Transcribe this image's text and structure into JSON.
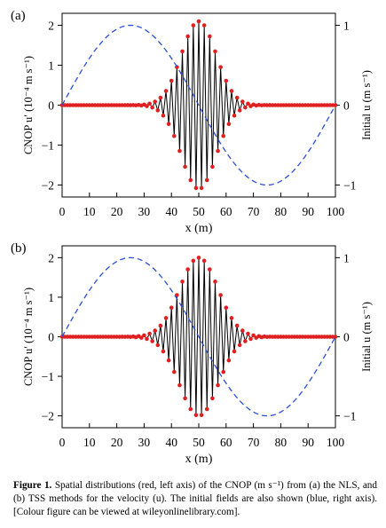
{
  "figure": {
    "caption_label": "Figure 1.",
    "caption_text": " Spatial distributions (red, left axis) of the CNOP (m s⁻¹) from (a) the NLS, and (b) TSS methods for the velocity (u). The initial fields are also shown (blue, right axis). [Colour figure can be viewed at wileyonlinelibrary.com]."
  },
  "chart_data": [
    {
      "type": "line",
      "panel_label": "(a)",
      "xlabel": "x (m)",
      "ylabel_left": "CNOP u′ (10⁻⁴ m s⁻¹)",
      "ylabel_right": "Initial u (m s⁻¹)",
      "xlim": [
        0,
        100
      ],
      "ylim_left": [
        -2.3,
        2.3
      ],
      "ylim_right": [
        -1.15,
        1.15
      ],
      "x_ticks": [
        0,
        10,
        20,
        30,
        40,
        50,
        60,
        70,
        80,
        90,
        100
      ],
      "y_ticks_left": [
        2,
        1,
        0,
        -1,
        -2
      ],
      "y_tick_labels_left": [
        "2",
        "1",
        "0",
        "−1",
        "−2"
      ],
      "y_ticks_right": [
        1,
        0,
        -1
      ],
      "y_tick_labels_right": [
        "1",
        "0",
        "−1"
      ],
      "colors": {
        "cnop_line": "#000000",
        "cnop_marker": "#e02020",
        "initial": "#2a4fd6"
      },
      "series": [
        {
          "axis": "left",
          "style": "line-with-markers",
          "envelope_center": 50,
          "envelope_width": 9.0,
          "envelope_amplitude": 2.1,
          "oscillation_half_period": 1.0,
          "x_range": [
            0,
            100
          ],
          "x_step": 1
        },
        {
          "axis": "right",
          "style": "dashed",
          "function": "sine",
          "amplitude": 1.0,
          "period": 100,
          "x_range": [
            0,
            100
          ]
        }
      ]
    },
    {
      "type": "line",
      "panel_label": "(b)",
      "xlabel": "x (m)",
      "ylabel_left": "CNOP u′ (10⁻⁴ m s⁻¹)",
      "ylabel_right": "Initial u (m s⁻¹)",
      "xlim": [
        0,
        100
      ],
      "ylim_left": [
        -2.3,
        2.3
      ],
      "ylim_right": [
        -1.15,
        1.15
      ],
      "x_ticks": [
        0,
        10,
        20,
        30,
        40,
        50,
        60,
        70,
        80,
        90,
        100
      ],
      "y_ticks_left": [
        2,
        1,
        0,
        -1,
        -2
      ],
      "y_tick_labels_left": [
        "2",
        "1",
        "0",
        "−1",
        "−2"
      ],
      "y_ticks_right": [
        1,
        0,
        -1
      ],
      "y_tick_labels_right": [
        "1",
        "0",
        "−1"
      ],
      "colors": {
        "cnop_line": "#000000",
        "cnop_marker": "#e02020",
        "initial": "#2a4fd6"
      },
      "series": [
        {
          "axis": "left",
          "style": "line-with-markers",
          "envelope_center": 50,
          "envelope_width": 10.0,
          "envelope_amplitude": 2.0,
          "oscillation_half_period": 1.0,
          "x_range": [
            0,
            100
          ],
          "x_step": 1
        },
        {
          "axis": "right",
          "style": "dashed",
          "function": "sine",
          "amplitude": 1.0,
          "period": 100,
          "x_range": [
            0,
            100
          ]
        }
      ]
    }
  ]
}
